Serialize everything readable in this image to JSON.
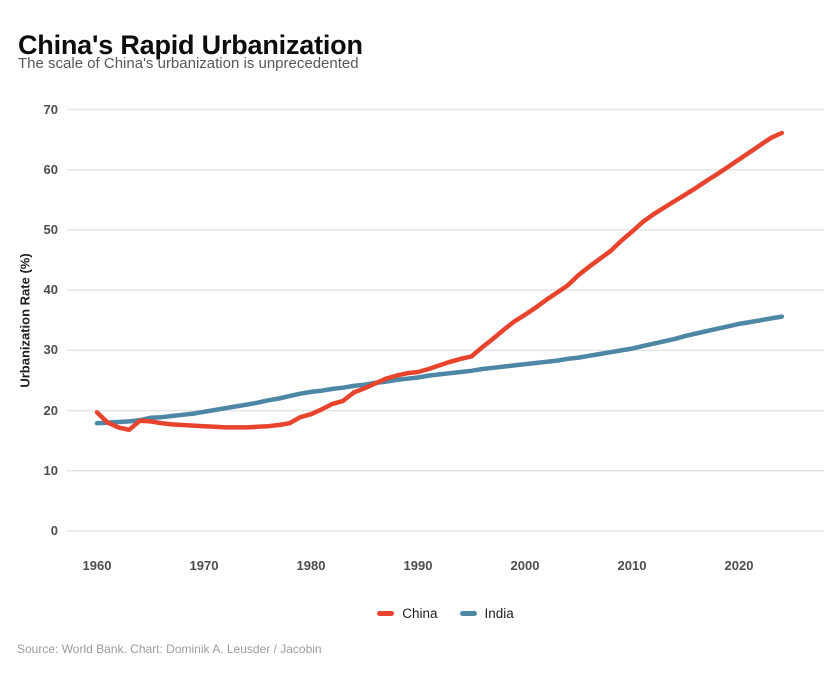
{
  "chart_data": {
    "type": "line",
    "title": "China's Rapid Urbanization",
    "subtitle": "The scale of China's urbanization is unprecedented",
    "xlabel": "",
    "ylabel": "Urbanization Rate (%)",
    "ylim": [
      0,
      70
    ],
    "yticks": [
      0,
      10,
      20,
      30,
      40,
      50,
      60,
      70
    ],
    "xticks": [
      1960,
      1970,
      1980,
      1990,
      2000,
      2010,
      2020
    ],
    "grid": "horizontal",
    "legend_position": "bottom-center",
    "background": "#ffffff",
    "gridline_color": "#e5e5e5",
    "x": [
      1960,
      1961,
      1962,
      1963,
      1964,
      1965,
      1966,
      1967,
      1968,
      1969,
      1970,
      1971,
      1972,
      1973,
      1974,
      1975,
      1976,
      1977,
      1978,
      1979,
      1980,
      1981,
      1982,
      1983,
      1984,
      1985,
      1986,
      1987,
      1988,
      1989,
      1990,
      1991,
      1992,
      1993,
      1994,
      1995,
      1996,
      1997,
      1998,
      1999,
      2000,
      2001,
      2002,
      2003,
      2004,
      2005,
      2006,
      2007,
      2008,
      2009,
      2010,
      2011,
      2012,
      2013,
      2014,
      2015,
      2016,
      2017,
      2018,
      2019,
      2020,
      2021,
      2022,
      2023,
      2024
    ],
    "series": [
      {
        "name": "India",
        "color": "#4D87A5",
        "values": [
          17.9,
          18.0,
          18.1,
          18.2,
          18.4,
          18.8,
          18.9,
          19.1,
          19.3,
          19.5,
          19.8,
          20.1,
          20.4,
          20.7,
          21.0,
          21.3,
          21.7,
          22.0,
          22.4,
          22.8,
          23.1,
          23.3,
          23.6,
          23.8,
          24.1,
          24.3,
          24.6,
          24.8,
          25.1,
          25.3,
          25.5,
          25.8,
          26.0,
          26.2,
          26.4,
          26.6,
          26.9,
          27.1,
          27.3,
          27.5,
          27.7,
          27.9,
          28.1,
          28.3,
          28.6,
          28.8,
          29.1,
          29.4,
          29.7,
          30.0,
          30.3,
          30.7,
          31.1,
          31.5,
          31.9,
          32.4,
          32.8,
          33.2,
          33.6,
          34.0,
          34.4,
          34.7,
          35.0,
          35.3,
          35.6
        ]
      },
      {
        "name": "China",
        "color": "#E8432C",
        "values": [
          19.7,
          18.0,
          17.2,
          16.8,
          18.3,
          18.2,
          17.9,
          17.7,
          17.6,
          17.5,
          17.4,
          17.3,
          17.2,
          17.2,
          17.2,
          17.3,
          17.4,
          17.6,
          17.9,
          18.9,
          19.4,
          20.2,
          21.1,
          21.6,
          23.0,
          23.7,
          24.5,
          25.3,
          25.8,
          26.2,
          26.4,
          26.9,
          27.5,
          28.1,
          28.6,
          29.0,
          30.5,
          31.9,
          33.4,
          34.8,
          35.9,
          37.1,
          38.4,
          39.6,
          40.8,
          42.5,
          43.9,
          45.2,
          46.5,
          48.2,
          49.7,
          51.3,
          52.6,
          53.7,
          54.8,
          55.9,
          57.0,
          58.2,
          59.3,
          60.5,
          61.7,
          62.9,
          64.1,
          65.3,
          66.1
        ]
      }
    ],
    "legend": [
      "China",
      "India"
    ],
    "source": "Source: World Bank. Chart: Dominik A. Leusder / Jacobin"
  }
}
